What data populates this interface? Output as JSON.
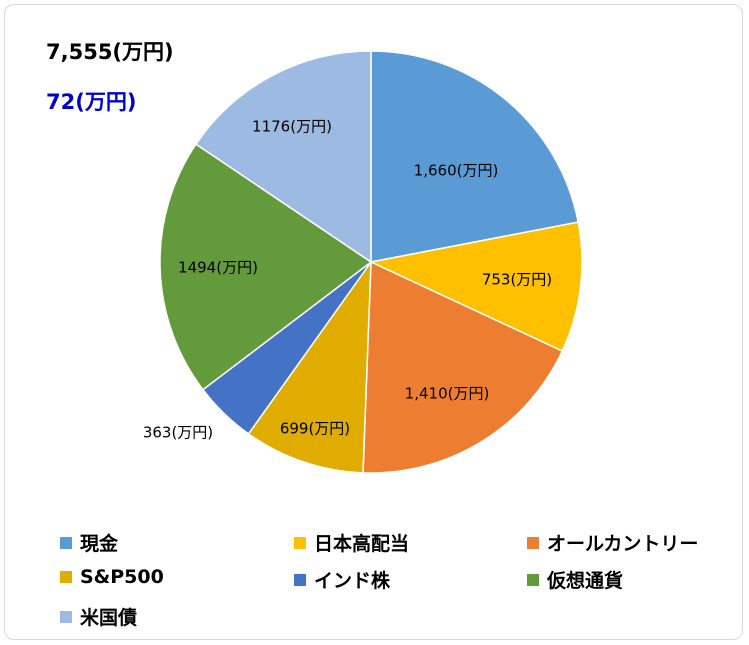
{
  "summary": {
    "total": "7,555(万円)",
    "change": "72(万円)",
    "change_color": "#0000cc"
  },
  "chart_data": {
    "type": "pie",
    "title": "",
    "legend_position": "bottom",
    "slices": [
      {
        "name": "現金",
        "value": 1660,
        "label": "1,660(万円)",
        "color": "#5b9bd5"
      },
      {
        "name": "日本高配当",
        "value": 753,
        "label": "753(万円)",
        "color": "#ffc000"
      },
      {
        "name": "オールカントリー",
        "value": 1410,
        "label": "1,410(万円)",
        "color": "#ed7d31"
      },
      {
        "name": "S&P500",
        "value": 699,
        "label": "699(万円)",
        "color": "#e0ac00"
      },
      {
        "name": "インド株",
        "value": 363,
        "label": "363(万円)",
        "color": "#4472c4"
      },
      {
        "name": "仮想通貨",
        "value": 1494,
        "label": "1494(万円)",
        "color": "#629a3c"
      },
      {
        "name": "米国債",
        "value": 1176,
        "label": "1176(万円)",
        "color": "#9dbbe2"
      }
    ]
  }
}
